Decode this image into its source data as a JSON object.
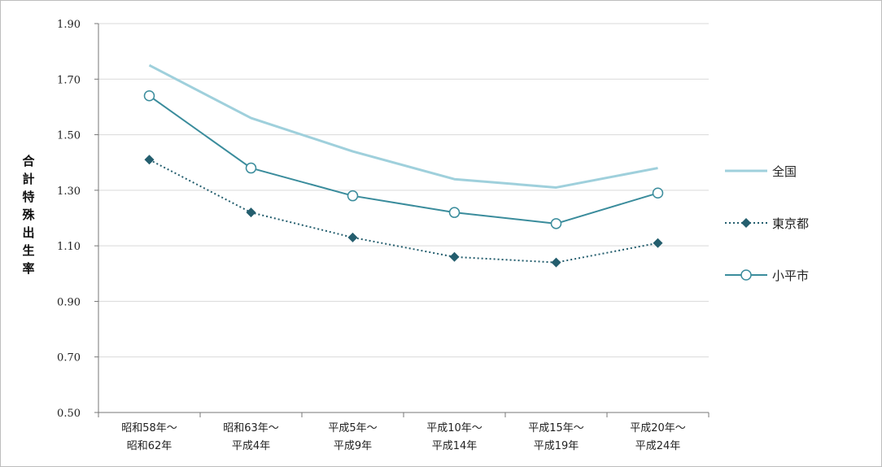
{
  "chart_data": {
    "type": "line",
    "title": "",
    "xlabel": "",
    "ylabel": "合計特殊出生率",
    "ylim": [
      0.5,
      1.9
    ],
    "yticks": [
      "0.50",
      "0.70",
      "0.90",
      "1.10",
      "1.30",
      "1.50",
      "1.70",
      "1.90"
    ],
    "grid": "horizontal",
    "legend_position": "right",
    "categories": [
      [
        "昭和58年～",
        "昭和62年"
      ],
      [
        "昭和63年～",
        "平成4年"
      ],
      [
        "平成5年～",
        "平成9年"
      ],
      [
        "平成10年～",
        "平成14年"
      ],
      [
        "平成15年～",
        "平成19年"
      ],
      [
        "平成20年～",
        "平成24年"
      ]
    ],
    "series": [
      {
        "name": "全国",
        "values": [
          1.75,
          1.56,
          1.44,
          1.34,
          1.31,
          1.38
        ],
        "color": "#9fd0dc",
        "marker": "none",
        "dash": "solid"
      },
      {
        "name": "東京都",
        "values": [
          1.41,
          1.22,
          1.13,
          1.06,
          1.04,
          1.11
        ],
        "color": "#245e6e",
        "marker": "diamond",
        "dash": "dotted"
      },
      {
        "name": "小平市",
        "values": [
          1.64,
          1.38,
          1.28,
          1.22,
          1.18,
          1.29
        ],
        "color": "#3a8c9c",
        "marker": "circle",
        "dash": "solid"
      }
    ]
  }
}
